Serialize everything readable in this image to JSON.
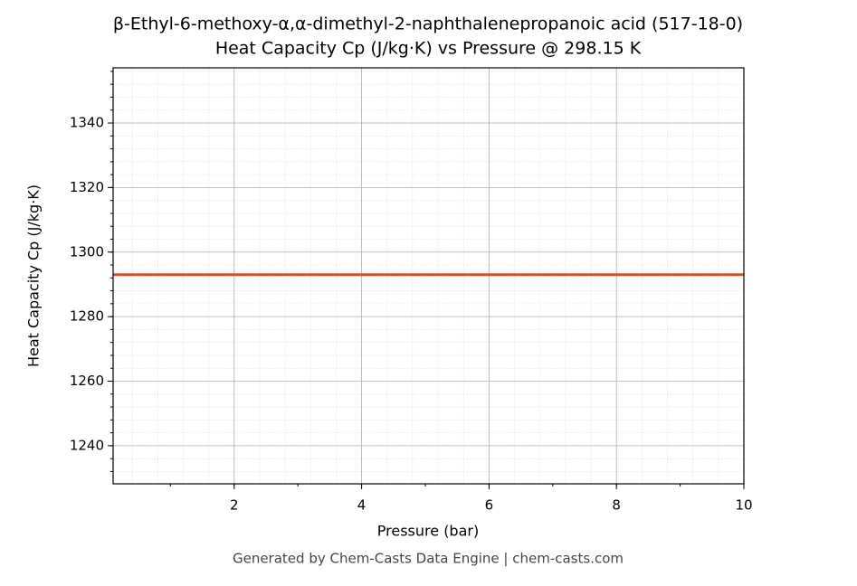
{
  "chart_data": {
    "type": "line",
    "title": "β-Ethyl-6-methoxy-α,α-dimethyl-2-naphthalenepropanoic acid (517-18-0)",
    "subtitle": "Heat Capacity Cp (J/kg·K) vs Pressure @ 298.15 K",
    "x_label": "Pressure (bar)",
    "y_label": "Heat Capacity Cp (J/kg·K)",
    "footer": "Generated by Chem-Casts Data Engine | chem-casts.com",
    "x": [
      0.1,
      10
    ],
    "values": [
      1293,
      1293
    ],
    "color": "#c8552b",
    "xlim": [
      0.1,
      10
    ],
    "xticks": [
      2,
      4,
      6,
      8,
      10
    ],
    "ylim": [
      1228.2,
      1357.1
    ],
    "yticks": [
      1240,
      1260,
      1280,
      1300,
      1320,
      1340
    ],
    "grid": true,
    "minor_grid": true
  }
}
